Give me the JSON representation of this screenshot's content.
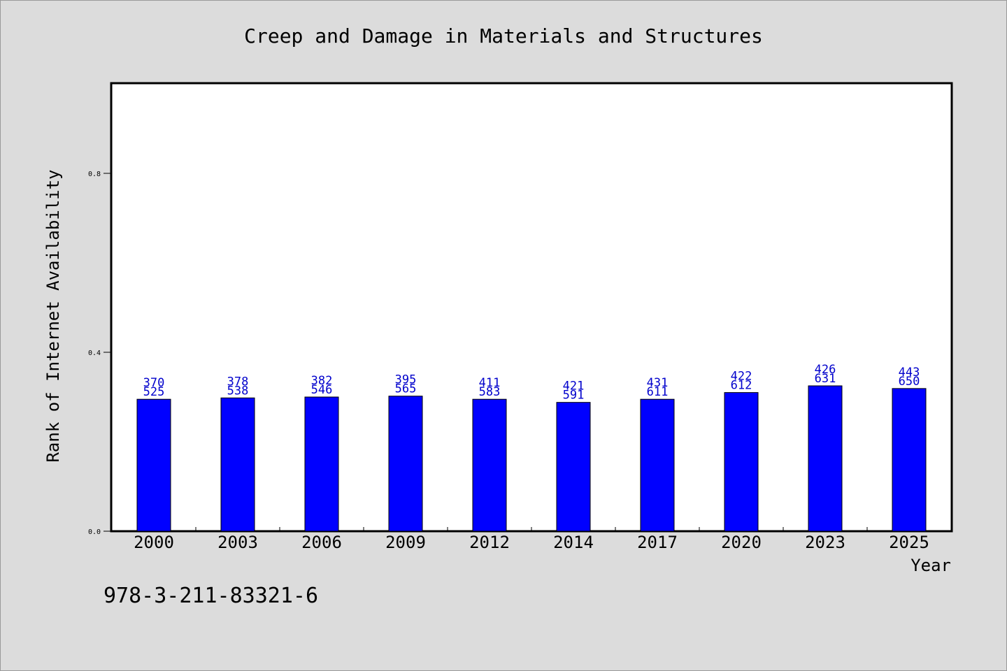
{
  "chart_data": {
    "type": "bar",
    "title": "Creep and Damage in Materials and Structures",
    "xlabel": "Year",
    "ylabel": "Rank of Internet Availability",
    "categories": [
      "2000",
      "2003",
      "2006",
      "2009",
      "2012",
      "2014",
      "2017",
      "2020",
      "2023",
      "2025"
    ],
    "values": [
      0.295,
      0.298,
      0.3,
      0.302,
      0.295,
      0.288,
      0.295,
      0.31,
      0.325,
      0.319
    ],
    "data_labels": [
      [
        "370",
        "525"
      ],
      [
        "378",
        "538"
      ],
      [
        "382",
        "546"
      ],
      [
        "395",
        "565"
      ],
      [
        "411",
        "583"
      ],
      [
        "421",
        "591"
      ],
      [
        "431",
        "611"
      ],
      [
        "422",
        "612"
      ],
      [
        "426",
        "631"
      ],
      [
        "443",
        "650"
      ]
    ],
    "ylim": [
      0,
      1.0
    ],
    "yticks": [
      "0.0",
      "0.4",
      "0.8"
    ],
    "bar_color": "#0000ff",
    "label_color": "#0000cc",
    "grid": false,
    "legend": "none"
  },
  "footnote": "978-3-211-83321-6"
}
